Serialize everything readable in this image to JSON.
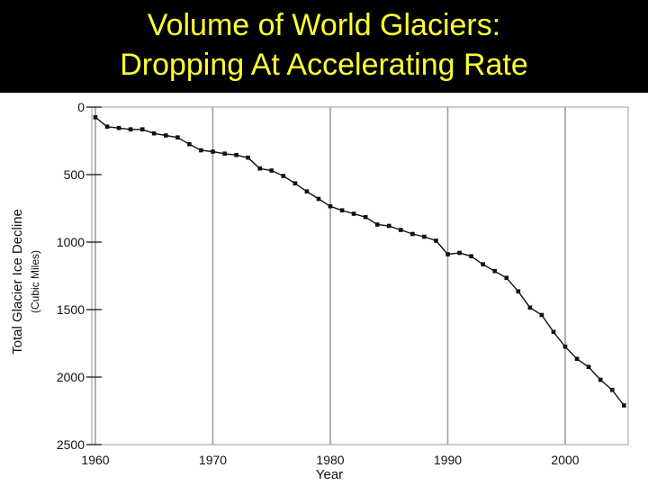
{
  "title": {
    "line1": "Volume of World Glaciers:",
    "line2": "Dropping At Accelerating Rate"
  },
  "colors": {
    "title_band": "#000000",
    "title_text": "#ffff33",
    "grid": "#999999",
    "line": "#111111"
  },
  "chart_data": {
    "type": "line",
    "title": "Volume of World Glaciers: Dropping At Accelerating Rate",
    "xlabel": "Year",
    "ylabel": "Total Glacier Ice Decline",
    "ylabel_unit": "(Cubic Miles)",
    "xlim": [
      1960,
      2007
    ],
    "ylim": [
      0,
      2500
    ],
    "y_inverted": true,
    "grid": "vertical",
    "x_ticks": [
      1960,
      1970,
      1980,
      1990,
      2000
    ],
    "y_ticks": [
      0,
      500,
      1000,
      1500,
      2000,
      2500
    ],
    "series": [
      {
        "x": [
          1960,
          1961,
          1962,
          1963,
          1964,
          1965,
          1966,
          1967,
          1968,
          1969,
          1970,
          1971,
          1972,
          1973,
          1974,
          1975,
          1976,
          1977,
          1978,
          1979,
          1980,
          1981,
          1982,
          1983,
          1984,
          1985,
          1986,
          1987,
          1988,
          1989,
          1990,
          1991,
          1992,
          1993,
          1994,
          1995,
          1996,
          1997,
          1998,
          1999,
          2000,
          2001,
          2002,
          2003,
          2004,
          2005
        ],
        "values": [
          75,
          145,
          155,
          165,
          165,
          195,
          210,
          225,
          275,
          320,
          330,
          345,
          355,
          375,
          455,
          470,
          510,
          565,
          625,
          680,
          735,
          765,
          790,
          815,
          870,
          880,
          910,
          940,
          960,
          990,
          1090,
          1080,
          1105,
          1165,
          1215,
          1265,
          1365,
          1485,
          1540,
          1665,
          1775,
          1865,
          1925,
          2020,
          2095,
          2210
        ]
      }
    ]
  }
}
